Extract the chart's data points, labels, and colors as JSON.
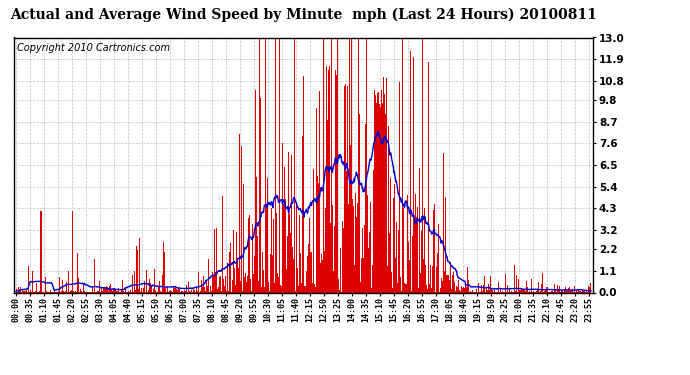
{
  "title": "Actual and Average Wind Speed by Minute  mph (Last 24 Hours) 20100811",
  "copyright": "Copyright 2010 Cartronics.com",
  "yticks": [
    0.0,
    1.1,
    2.2,
    3.2,
    4.3,
    5.4,
    6.5,
    7.6,
    8.7,
    9.8,
    10.8,
    11.9,
    13.0
  ],
  "ylim": [
    0,
    13.0
  ],
  "bar_color": "#dd0000",
  "line_color": "#0000cc",
  "background_color": "#ffffff",
  "grid_color": "#999999",
  "title_fontsize": 11,
  "copyright_fontsize": 7,
  "num_minutes": 1440,
  "seed": 42,
  "tick_step_minutes": 35
}
